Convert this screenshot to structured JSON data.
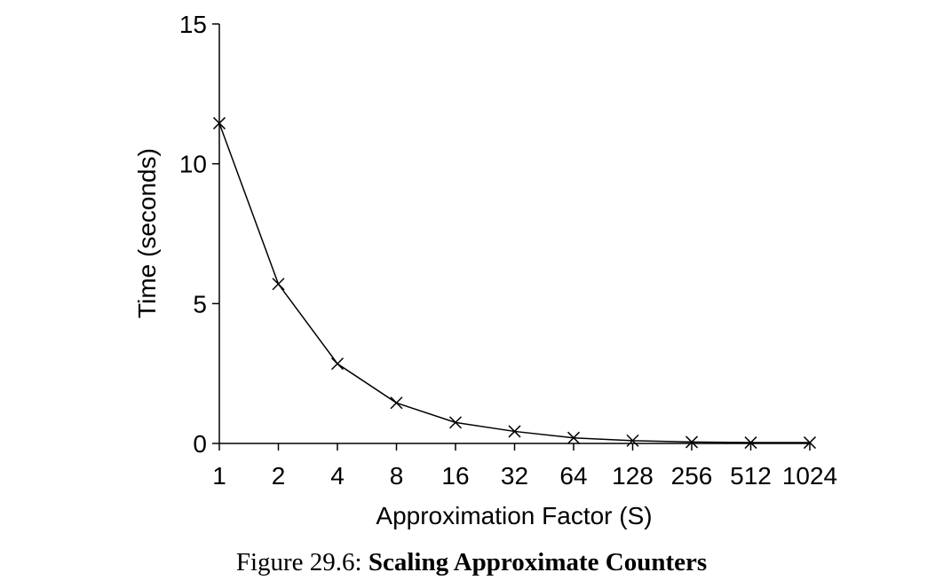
{
  "chart_data": {
    "type": "line",
    "title": "",
    "xlabel": "Approximation Factor (S)",
    "ylabel": "Time (seconds)",
    "categories": [
      "1",
      "2",
      "4",
      "8",
      "16",
      "32",
      "64",
      "128",
      "256",
      "512",
      "1024"
    ],
    "x": [
      1,
      2,
      4,
      8,
      16,
      32,
      64,
      128,
      256,
      512,
      1024
    ],
    "x_scale": "log2",
    "ylim": [
      0,
      15
    ],
    "yticks": [
      0,
      5,
      10,
      15
    ],
    "grid": false,
    "legend": "none",
    "marker": "x",
    "line_color": "#000000",
    "series": [
      {
        "values": [
          11.45,
          5.7,
          2.85,
          1.45,
          0.75,
          0.43,
          0.2,
          0.1,
          0.05,
          0.03,
          0.03
        ]
      }
    ]
  },
  "caption": {
    "prefix": "Figure 29.6: ",
    "title": "Scaling Approximate Counters"
  }
}
